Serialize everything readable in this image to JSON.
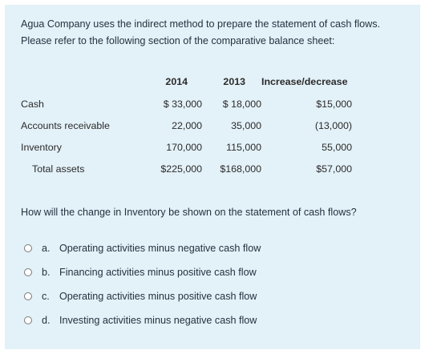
{
  "intro_text": "Agua Company uses the indirect method to prepare the statement of cash flows. Please refer to the following section of the comparative balance sheet:",
  "table": {
    "headers": [
      "2014",
      "2013",
      "Increase/decrease"
    ],
    "rows": [
      {
        "label": "Cash",
        "v2014": "$ 33,000",
        "v2013": "$ 18,000",
        "change": "$15,000"
      },
      {
        "label": "Accounts receivable",
        "v2014": "22,000",
        "v2013": "35,000",
        "change": "(13,000)"
      },
      {
        "label": "Inventory",
        "v2014": "170,000",
        "v2013": "115,000",
        "change": "55,000"
      },
      {
        "label": "Total assets",
        "v2014": "$225,000",
        "v2013": "$168,000",
        "change": "$57,000"
      }
    ]
  },
  "question": "How will the change in Inventory be shown on the statement of cash flows?",
  "options": [
    {
      "letter": "a.",
      "text": "Operating activities minus negative cash flow"
    },
    {
      "letter": "b.",
      "text": "Financing activities minus positive cash flow"
    },
    {
      "letter": "c.",
      "text": "Operating activities minus positive cash flow"
    },
    {
      "letter": "d.",
      "text": "Investing activities minus negative cash flow"
    }
  ],
  "colors": {
    "panel_background": "#e3f1f8",
    "text": "#233240"
  }
}
